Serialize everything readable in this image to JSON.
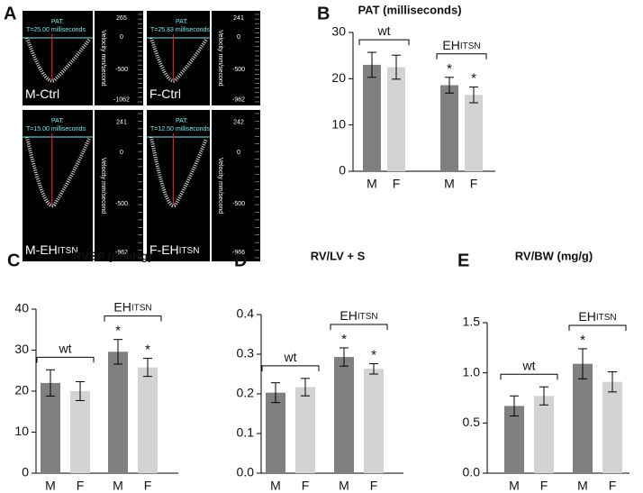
{
  "panel_a": {
    "panel": "A",
    "images": [
      {
        "label": "M-Ctrl",
        "pat_label": "PAT:",
        "pat_text": "T=25.00 milliseconds",
        "axis_title": "Velocity mm/second",
        "axis_labels": [
          "265",
          "0",
          "-500",
          "-1062"
        ]
      },
      {
        "label": "F-Ctrl",
        "pat_label": "PAT:",
        "pat_text": "T=25.83 milliseconds",
        "axis_title": "Velocity mm/second",
        "axis_labels": [
          "241",
          "0",
          "-500",
          "-962"
        ]
      },
      {
        "label": "M-EH",
        "label_small": "ITSN",
        "pat_label": "PAT:",
        "pat_text": "T=15.00 milliseconds",
        "axis_title": "Velocity mm/second",
        "axis_labels": [
          "241",
          "0",
          "-500",
          "-962"
        ]
      },
      {
        "label": "F-EH",
        "label_small": "ITSN",
        "pat_label": "PAT:",
        "pat_text": "T=12.50 milliseconds",
        "axis_title": "Velocity mm/second",
        "axis_labels": [
          "242",
          "0",
          "-500",
          "-966"
        ]
      }
    ]
  },
  "chart_data": [
    {
      "type": "bar",
      "panel": "B",
      "title": "PAT (milliseconds)",
      "categories": [
        "M",
        "F",
        "M",
        "F"
      ],
      "values": [
        23,
        22.5,
        18.6,
        16.5
      ],
      "errors": [
        2.7,
        2.6,
        1.7,
        1.7
      ],
      "colors": [
        "#808080",
        "#d3d3d3",
        "#808080",
        "#d3d3d3"
      ],
      "significance": [
        null,
        null,
        "*",
        "*"
      ],
      "groups": [
        {
          "label": "wt"
        },
        {
          "label": "EH",
          "label_small": "ITSN"
        }
      ],
      "ylim": [
        0,
        30
      ],
      "yticks": [
        0,
        10,
        20,
        30
      ]
    },
    {
      "type": "bar",
      "panel": "C",
      "title": "RVSP (mmHg)",
      "categories": [
        "M",
        "F",
        "M",
        "F"
      ],
      "values": [
        22,
        20,
        29.6,
        25.8
      ],
      "errors": [
        3.2,
        2.3,
        3,
        2.2
      ],
      "colors": [
        "#808080",
        "#d3d3d3",
        "#808080",
        "#d3d3d3"
      ],
      "significance": [
        null,
        null,
        "*",
        "*"
      ],
      "groups": [
        {
          "label": "wt"
        },
        {
          "label": "EH",
          "label_small": "ITSN"
        }
      ],
      "ylim": [
        0,
        40
      ],
      "yticks": [
        0,
        10,
        20,
        30,
        40
      ]
    },
    {
      "type": "bar",
      "panel": "D",
      "title": "RV/LV + S",
      "categories": [
        "M",
        "F",
        "M",
        "F"
      ],
      "values": [
        0.203,
        0.217,
        0.293,
        0.263
      ],
      "errors": [
        0.025,
        0.022,
        0.023,
        0.013
      ],
      "colors": [
        "#808080",
        "#d3d3d3",
        "#808080",
        "#d3d3d3"
      ],
      "significance": [
        null,
        null,
        "*",
        "*"
      ],
      "groups": [
        {
          "label": "wt"
        },
        {
          "label": "EH",
          "label_small": "ITSN"
        }
      ],
      "ylim": [
        0,
        0.4
      ],
      "yticks": [
        {
          "value": 0,
          "label": "0.0"
        },
        0.1,
        0.2,
        0.3,
        0.4
      ]
    },
    {
      "type": "bar",
      "panel": "E",
      "title": "RV/BW (mg/g)",
      "categories": [
        "M",
        "F",
        "M",
        "F"
      ],
      "values": [
        0.67,
        0.77,
        1.09,
        0.91
      ],
      "errors": [
        0.1,
        0.09,
        0.15,
        0.1
      ],
      "colors": [
        "#808080",
        "#d3d3d3",
        "#808080",
        "#d3d3d3"
      ],
      "significance": [
        null,
        null,
        "*",
        null
      ],
      "groups": [
        {
          "label": "wt"
        },
        {
          "label": "EH",
          "label_small": "ITSN"
        }
      ],
      "ylim": [
        0,
        1.5
      ],
      "yticks": [
        {
          "value": 0,
          "label": "0.0"
        },
        0.5,
        {
          "value": 1,
          "label": "1.0"
        },
        1.5
      ]
    }
  ]
}
